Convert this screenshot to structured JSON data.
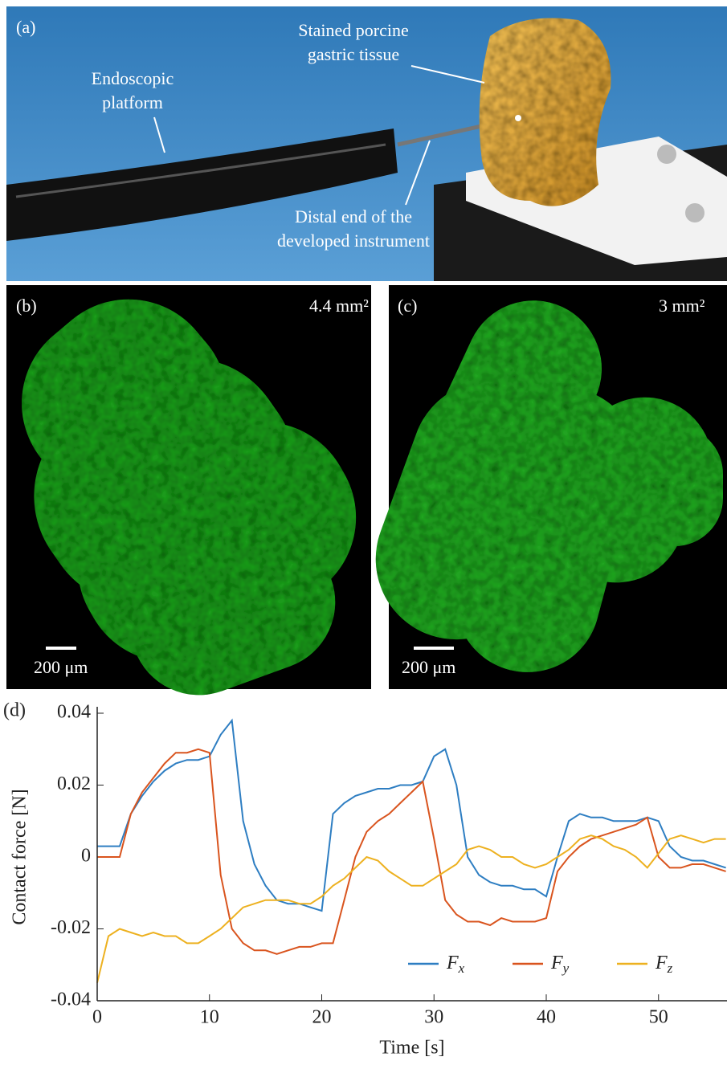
{
  "photos": {
    "a": {
      "label": "(a)",
      "platform": [
        "Endoscopic",
        "platform"
      ],
      "tissue": [
        "Stained porcine",
        "gastric tissue"
      ],
      "instrument": [
        "Distal end of the",
        "developed instrument"
      ]
    },
    "b": {
      "label": "(b)",
      "area": "4.4 mm²",
      "scale": "200 μm"
    },
    "c": {
      "label": "(c)",
      "area": "3 mm²",
      "scale": "200 μm"
    }
  },
  "chart_data": {
    "type": "line",
    "panel_label": "(d)",
    "xlabel": "Time [s]",
    "ylabel": "Contact force [N]",
    "x": [
      0,
      1,
      2,
      3,
      4,
      5,
      6,
      7,
      8,
      9,
      10,
      11,
      12,
      13,
      14,
      15,
      16,
      17,
      18,
      19,
      20,
      21,
      22,
      23,
      24,
      25,
      26,
      27,
      28,
      29,
      30,
      31,
      32,
      33,
      34,
      35,
      36,
      37,
      38,
      39,
      40,
      41,
      42,
      43,
      44,
      45,
      46,
      47,
      48,
      49,
      50,
      51,
      52,
      53,
      54,
      55,
      56
    ],
    "series": [
      {
        "name": "Fx",
        "color": "#2e7ec2",
        "values": [
          0.003,
          0.003,
          0.003,
          0.012,
          0.017,
          0.021,
          0.024,
          0.026,
          0.027,
          0.027,
          0.028,
          0.034,
          0.038,
          0.01,
          -0.002,
          -0.008,
          -0.012,
          -0.013,
          -0.013,
          -0.014,
          -0.015,
          0.012,
          0.015,
          0.017,
          0.018,
          0.019,
          0.019,
          0.02,
          0.02,
          0.021,
          0.028,
          0.03,
          0.02,
          0.0,
          -0.005,
          -0.007,
          -0.008,
          -0.008,
          -0.009,
          -0.009,
          -0.011,
          0.0,
          0.01,
          0.012,
          0.011,
          0.011,
          0.01,
          0.01,
          0.01,
          0.011,
          0.01,
          0.003,
          0.0,
          -0.001,
          -0.001,
          -0.002,
          -0.003
        ]
      },
      {
        "name": "Fy",
        "color": "#d9541e",
        "values": [
          0.0,
          0.0,
          0.0,
          0.012,
          0.018,
          0.022,
          0.026,
          0.029,
          0.029,
          0.03,
          0.029,
          -0.005,
          -0.02,
          -0.024,
          -0.026,
          -0.026,
          -0.027,
          -0.026,
          -0.025,
          -0.025,
          -0.024,
          -0.024,
          -0.012,
          0.0,
          0.007,
          0.01,
          0.012,
          0.015,
          0.018,
          0.021,
          0.005,
          -0.012,
          -0.016,
          -0.018,
          -0.018,
          -0.019,
          -0.017,
          -0.018,
          -0.018,
          -0.018,
          -0.017,
          -0.004,
          0.0,
          0.003,
          0.005,
          0.006,
          0.007,
          0.008,
          0.009,
          0.011,
          0.0,
          -0.003,
          -0.003,
          -0.002,
          -0.002,
          -0.003,
          -0.004
        ]
      },
      {
        "name": "Fz",
        "color": "#edb120",
        "values": [
          -0.035,
          -0.022,
          -0.02,
          -0.021,
          -0.022,
          -0.021,
          -0.022,
          -0.022,
          -0.024,
          -0.024,
          -0.022,
          -0.02,
          -0.017,
          -0.014,
          -0.013,
          -0.012,
          -0.012,
          -0.012,
          -0.013,
          -0.013,
          -0.011,
          -0.008,
          -0.006,
          -0.003,
          0.0,
          -0.001,
          -0.004,
          -0.006,
          -0.008,
          -0.008,
          -0.006,
          -0.004,
          -0.002,
          0.002,
          0.003,
          0.002,
          0.0,
          0.0,
          -0.002,
          -0.003,
          -0.002,
          0.0,
          0.002,
          0.005,
          0.006,
          0.005,
          0.003,
          0.002,
          0.0,
          -0.003,
          0.001,
          0.005,
          0.006,
          0.005,
          0.004,
          0.005,
          0.005
        ]
      }
    ],
    "xlim": [
      0,
      56.1
    ],
    "xticks": [
      0,
      10,
      20,
      30,
      40,
      50
    ],
    "ylim": [
      -0.04,
      0.04
    ],
    "yticks": [
      -0.04,
      -0.02,
      0,
      0.02,
      0.04
    ],
    "legend": "lower right"
  }
}
